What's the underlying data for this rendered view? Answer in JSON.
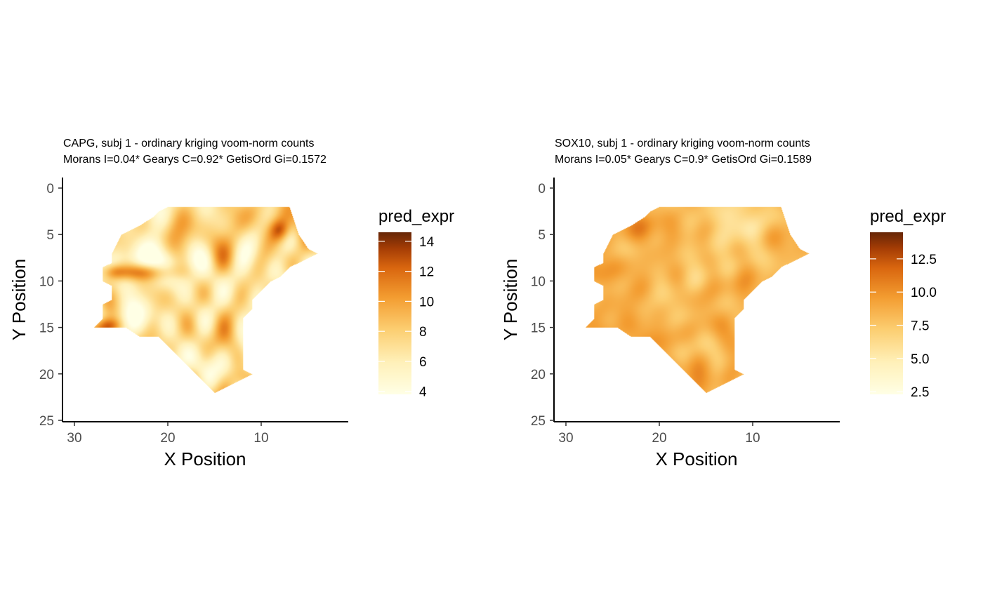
{
  "chart_data": [
    {
      "type": "heatmap",
      "title": "CAPG, subj 1 - ordinary kriging voom-norm counts",
      "subtitle": "Morans I=0.04*  Gearys C=0.92*  GetisOrd Gi=0.1572",
      "xlabel": "X Position",
      "ylabel": "Y Position",
      "x_reversed": true,
      "y_reversed": true,
      "xlim": [
        32.5,
        1.8
      ],
      "ylim": [
        0,
        25
      ],
      "xticks": [
        30,
        20,
        10
      ],
      "yticks": [
        0,
        5,
        10,
        15,
        20,
        25
      ],
      "legend": {
        "title": "pred_expr",
        "min": 3.8,
        "max": 14.6,
        "ticks": [
          4,
          6,
          8,
          10,
          12,
          14
        ],
        "tick_labels": [
          "4",
          "6",
          "8",
          "10",
          "12",
          "14"
        ],
        "position": "right"
      },
      "field": {
        "base": 7.0,
        "amp": 2.4,
        "seed": 11,
        "blobs": [
          {
            "x": 23,
            "y": 9,
            "sx": 2.8,
            "sy": 0.7,
            "a": 6.5
          },
          {
            "x": 25.8,
            "y": 9,
            "sx": 0.8,
            "sy": 0.6,
            "a": 2.5
          },
          {
            "x": 8,
            "y": 4.5,
            "sx": 0.8,
            "sy": 0.9,
            "a": 6.0
          },
          {
            "x": 26.5,
            "y": 14.8,
            "sx": 1.0,
            "sy": 0.6,
            "a": 5.0
          },
          {
            "x": 23,
            "y": 10,
            "sx": 3.0,
            "sy": 3.5,
            "a": -2.0
          },
          {
            "x": 21.5,
            "y": 6.5,
            "sx": 2.0,
            "sy": 1.5,
            "a": -1.5
          },
          {
            "x": 12,
            "y": 20.5,
            "sx": 1.0,
            "sy": 0.8,
            "a": 2.5
          },
          {
            "x": 15,
            "y": 3,
            "sx": 3.0,
            "sy": 1.5,
            "a": 1.2
          }
        ]
      }
    },
    {
      "type": "heatmap",
      "title": "SOX10, subj 1 - ordinary kriging voom-norm counts",
      "subtitle": "Morans I=0.05*  Gearys C=0.9*  GetisOrd Gi=0.1589",
      "xlabel": "X Position",
      "ylabel": "Y Position",
      "x_reversed": true,
      "y_reversed": true,
      "xlim": [
        32.5,
        1.8
      ],
      "ylim": [
        0,
        25
      ],
      "xticks": [
        30,
        20,
        10
      ],
      "yticks": [
        0,
        5,
        10,
        15,
        20,
        25
      ],
      "legend": {
        "title": "pred_expr",
        "min": 2.3,
        "max": 14.5,
        "ticks": [
          2.5,
          5.0,
          7.5,
          10.0,
          12.5
        ],
        "tick_labels": [
          "2.5",
          "5.0",
          "7.5",
          "10.0",
          "12.5"
        ],
        "position": "right"
      },
      "field": {
        "base": 8.6,
        "amp": 0.9,
        "seed": 29,
        "blobs": [
          {
            "x": 11.5,
            "y": 4.0,
            "sx": 2.6,
            "sy": 1.8,
            "a": -3.2
          },
          {
            "x": 17.5,
            "y": 10.5,
            "sx": 2.5,
            "sy": 3.0,
            "a": -1.0
          },
          {
            "x": 13.5,
            "y": 3.0,
            "sx": 2.0,
            "sy": 1.0,
            "a": -0.8
          },
          {
            "x": 21,
            "y": 4.5,
            "sx": 2.0,
            "sy": 1.2,
            "a": 0.8
          },
          {
            "x": 24,
            "y": 13,
            "sx": 2.0,
            "sy": 2.0,
            "a": 0.6
          }
        ]
      }
    }
  ],
  "tissue_outline": [
    [
      7.0,
      2.0
    ],
    [
      9.0,
      2.0
    ],
    [
      13.0,
      2.0
    ],
    [
      18.0,
      2.0
    ],
    [
      20.0,
      2.0
    ],
    [
      21.0,
      2.5
    ],
    [
      21.5,
      3.0
    ],
    [
      23.0,
      4.0
    ],
    [
      24.0,
      4.5
    ],
    [
      25.0,
      5.0
    ],
    [
      25.5,
      6.0
    ],
    [
      26.0,
      7.0
    ],
    [
      26.0,
      8.0
    ],
    [
      27.0,
      8.5
    ],
    [
      27.0,
      10.0
    ],
    [
      26.0,
      10.5
    ],
    [
      26.0,
      12.0
    ],
    [
      27.0,
      12.5
    ],
    [
      27.0,
      14.0
    ],
    [
      28.0,
      15.0
    ],
    [
      26.0,
      15.0
    ],
    [
      24.5,
      15.0
    ],
    [
      23.0,
      16.0
    ],
    [
      21.0,
      16.0
    ],
    [
      20.0,
      17.0
    ],
    [
      19.0,
      18.0
    ],
    [
      18.0,
      19.0
    ],
    [
      16.0,
      21.0
    ],
    [
      15.0,
      22.0
    ],
    [
      14.0,
      21.5
    ],
    [
      13.0,
      21.0
    ],
    [
      12.0,
      20.5
    ],
    [
      11.0,
      20.0
    ],
    [
      12.0,
      19.5
    ],
    [
      12.0,
      18.0
    ],
    [
      12.0,
      16.0
    ],
    [
      12.0,
      14.0
    ],
    [
      11.0,
      13.0
    ],
    [
      11.0,
      12.0
    ],
    [
      10.0,
      11.0
    ],
    [
      9.0,
      10.0
    ],
    [
      8.0,
      9.5
    ],
    [
      7.0,
      8.5
    ],
    [
      6.0,
      8.0
    ],
    [
      5.0,
      7.5
    ],
    [
      4.0,
      7.0
    ],
    [
      5.0,
      6.5
    ],
    [
      6.0,
      5.0
    ]
  ]
}
